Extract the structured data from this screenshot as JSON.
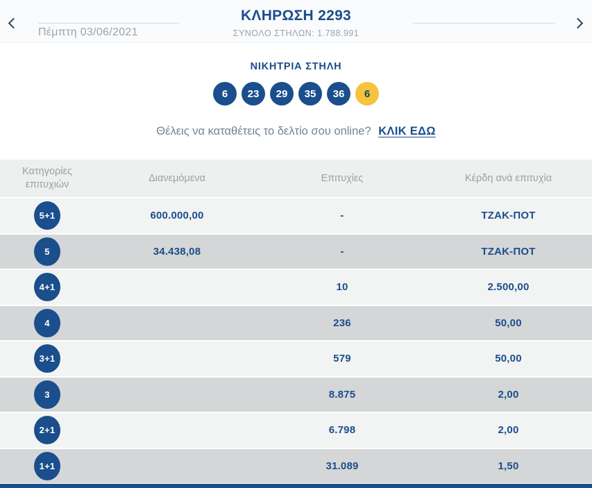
{
  "colors": {
    "navy": "#1a4e8c",
    "joker_yellow": "#f5c33c",
    "muted_gray": "#9ba3ab",
    "row_light": "#f2f3f3",
    "row_dark": "#d5d6d7"
  },
  "header": {
    "title": "ΚΛΗΡΩΣΗ 2293",
    "total_columns": "ΣΥΝΟΛΟ ΣΤΗΛΩΝ: 1.788.991",
    "prev_date": "Πέμπτη 03/06/2021"
  },
  "winning": {
    "title": "ΝΙΚΗΤΡΙΑ ΣΤΗΛΗ",
    "numbers": [
      "6",
      "23",
      "29",
      "35",
      "36"
    ],
    "joker": "6"
  },
  "online": {
    "text": "Θέλεις να καταθέτεις το δελτίο σου online?",
    "link": "ΚΛΙΚ ΕΔΩ"
  },
  "table": {
    "headers": [
      "Κατηγορίες επιτυχιών",
      "Διανεμόμενα",
      "Επιτυχίες",
      "Κέρδη ανά επιτυχία"
    ],
    "rows": [
      {
        "category": "5+1",
        "distributed": "600.000,00",
        "wins": "-",
        "prize": "ΤΖΑΚ-ΠΟΤ"
      },
      {
        "category": "5",
        "distributed": "34.438,08",
        "wins": "-",
        "prize": "ΤΖΑΚ-ΠΟΤ"
      },
      {
        "category": "4+1",
        "distributed": "",
        "wins": "10",
        "prize": "2.500,00"
      },
      {
        "category": "4",
        "distributed": "",
        "wins": "236",
        "prize": "50,00"
      },
      {
        "category": "3+1",
        "distributed": "",
        "wins": "579",
        "prize": "50,00"
      },
      {
        "category": "3",
        "distributed": "",
        "wins": "8.875",
        "prize": "2,00"
      },
      {
        "category": "2+1",
        "distributed": "",
        "wins": "6.798",
        "prize": "2,00"
      },
      {
        "category": "1+1",
        "distributed": "",
        "wins": "31.089",
        "prize": "1,50"
      }
    ]
  }
}
